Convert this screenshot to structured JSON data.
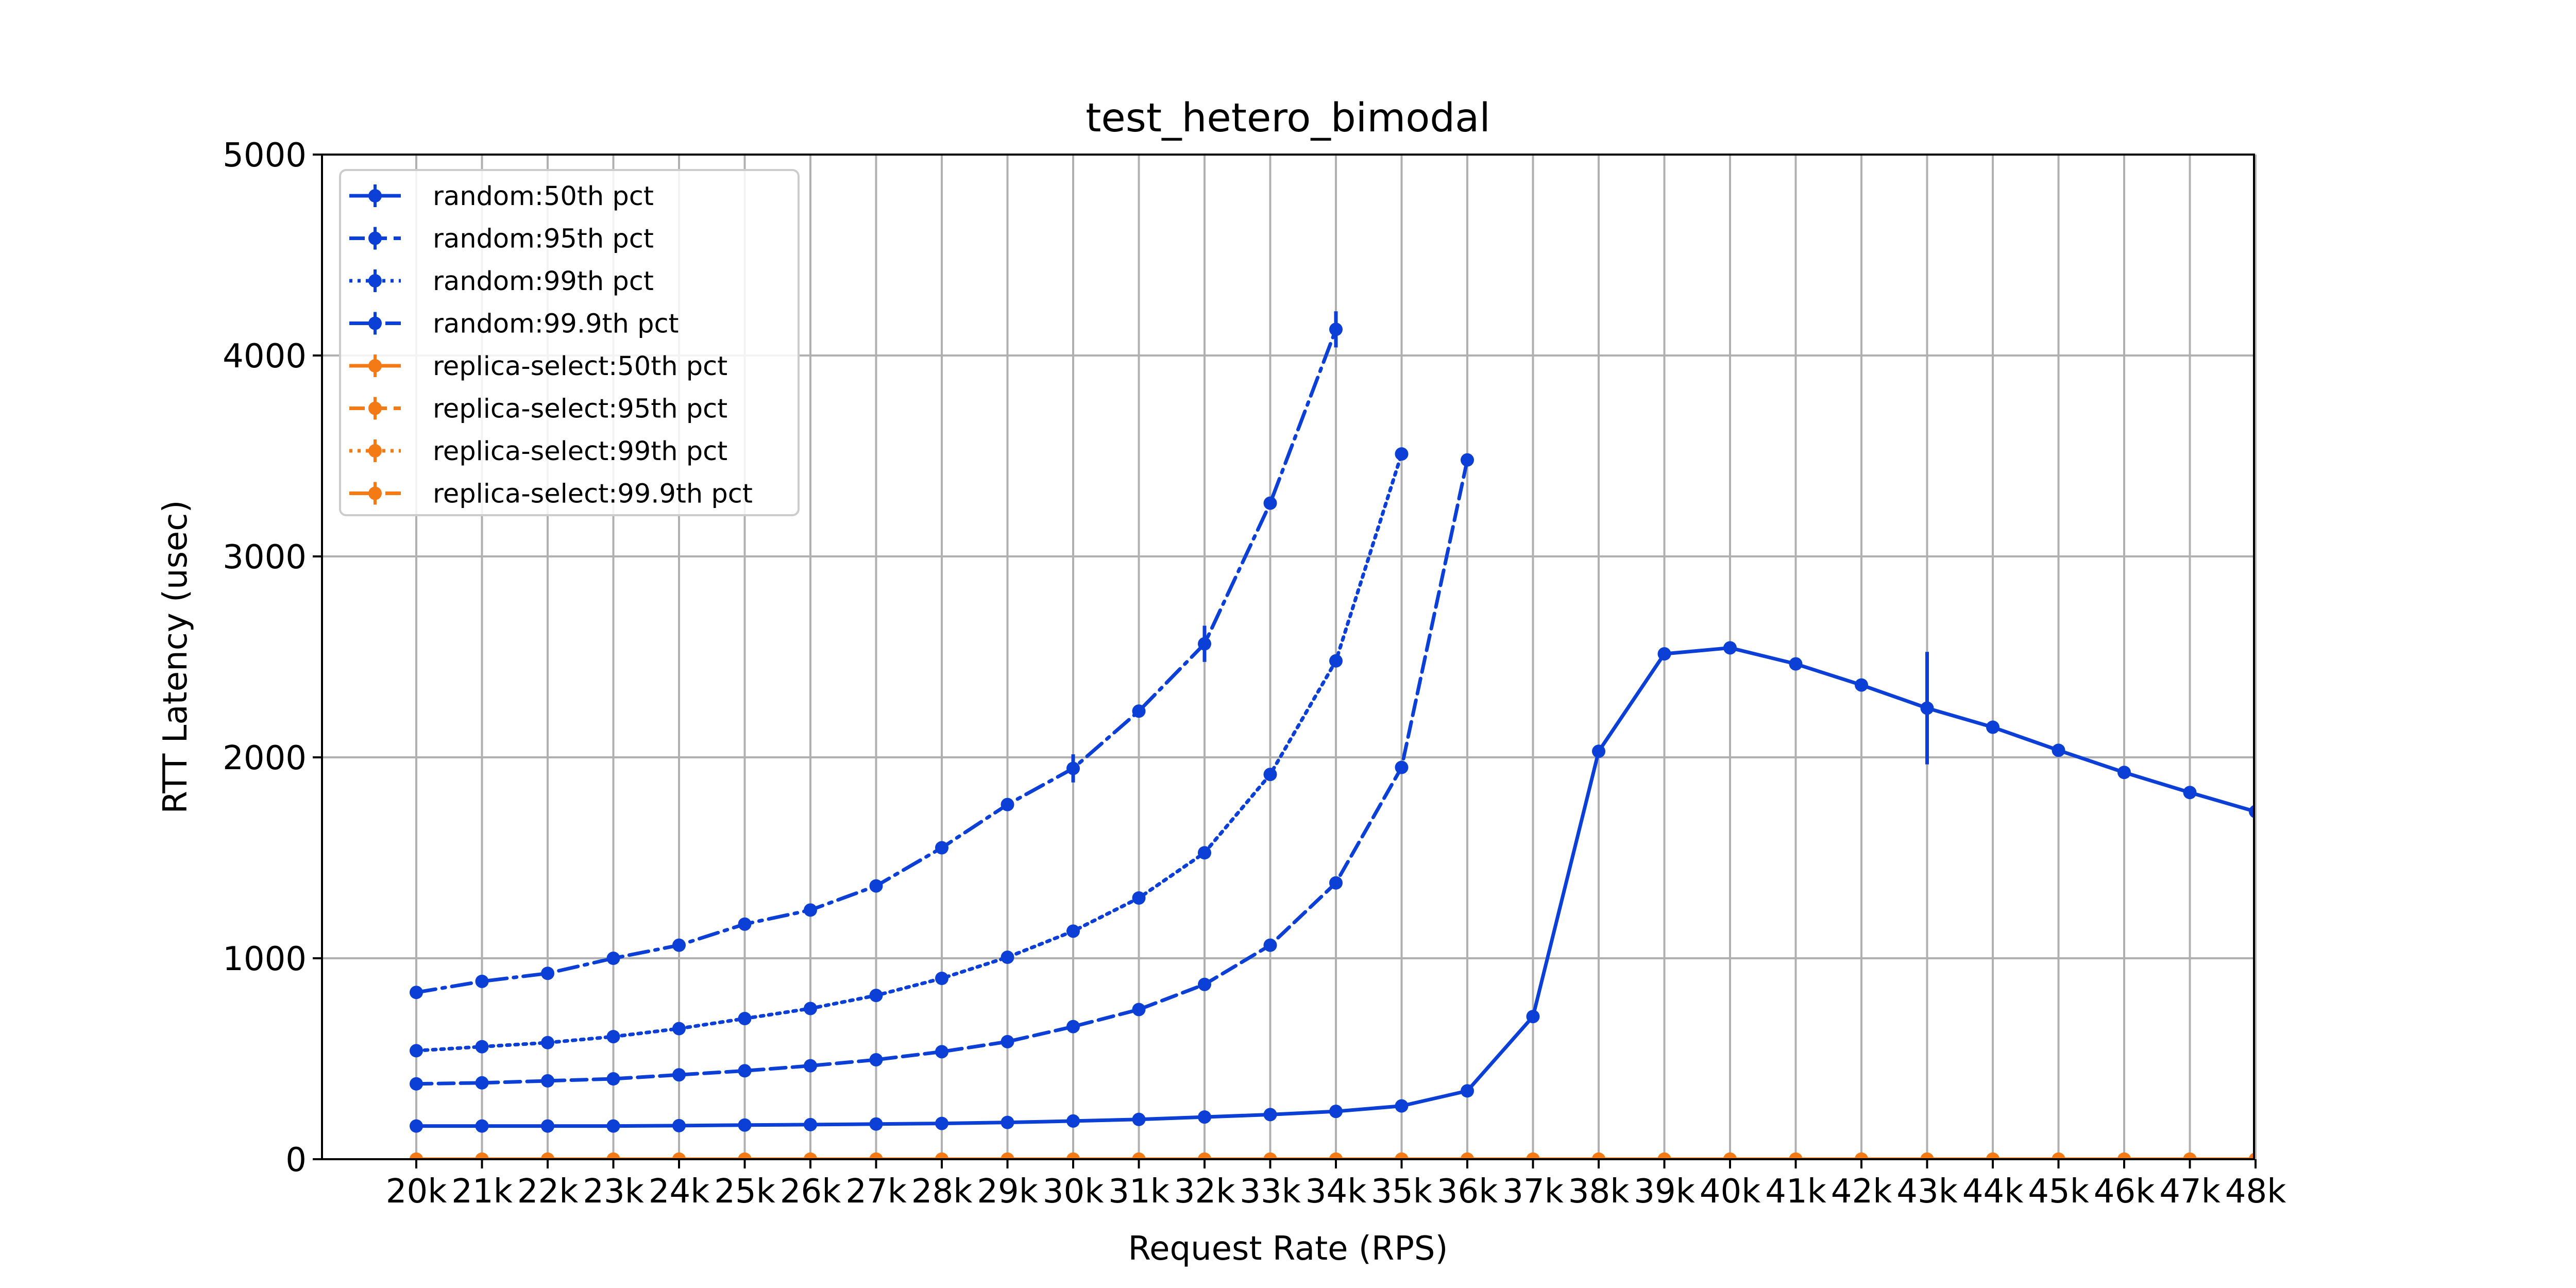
{
  "chart_data": {
    "type": "line",
    "title": "test_hetero_bimodal",
    "xlabel": "Request Rate (RPS)",
    "ylabel": "RTT Latency (usec)",
    "ylim": [
      0,
      5000
    ],
    "yticks": [
      0,
      1000,
      2000,
      3000,
      4000,
      5000
    ],
    "grid": true,
    "legend_position": "upper-left",
    "categories": [
      "20k",
      "21k",
      "22k",
      "23k",
      "24k",
      "25k",
      "26k",
      "27k",
      "28k",
      "29k",
      "30k",
      "31k",
      "32k",
      "33k",
      "34k",
      "35k",
      "36k",
      "37k",
      "38k",
      "39k",
      "40k",
      "41k",
      "42k",
      "43k",
      "44k",
      "45k",
      "46k",
      "47k",
      "48k"
    ],
    "series": [
      {
        "name": "random:50th pct",
        "color": "#0b3fd6",
        "dash": "solid",
        "values": [
          165,
          165,
          165,
          165,
          167,
          170,
          172,
          175,
          178,
          183,
          190,
          198,
          210,
          222,
          238,
          265,
          340,
          710,
          2030,
          2515,
          2545,
          2465,
          2360,
          2245,
          2150,
          2035,
          1925,
          1825,
          1730
        ],
        "errors": {
          "23": 280
        }
      },
      {
        "name": "random:95th pct",
        "color": "#0b3fd6",
        "dash": "dashed",
        "values": [
          375,
          380,
          390,
          400,
          420,
          440,
          465,
          495,
          535,
          585,
          660,
          745,
          870,
          1065,
          1375,
          1950,
          3480,
          null,
          null,
          null,
          null,
          null,
          null,
          null,
          null,
          null,
          null,
          null,
          null
        ]
      },
      {
        "name": "random:99th pct",
        "color": "#0b3fd6",
        "dash": "dotted",
        "values": [
          540,
          560,
          580,
          610,
          650,
          700,
          750,
          815,
          900,
          1005,
          1135,
          1300,
          1525,
          1915,
          2480,
          3510,
          null,
          null,
          null,
          null,
          null,
          null,
          null,
          null,
          null,
          null,
          null,
          null,
          null
        ],
        "errors": {
          "14": 30,
          "15": 30
        }
      },
      {
        "name": "random:99.9th pct",
        "color": "#0b3fd6",
        "dash": "dashdot",
        "values": [
          830,
          885,
          925,
          1000,
          1065,
          1170,
          1240,
          1360,
          1550,
          1765,
          1945,
          2230,
          2565,
          3265,
          4130,
          null,
          null,
          null,
          null,
          null,
          null,
          null,
          null,
          null,
          null,
          null,
          null,
          null,
          null
        ],
        "errors": {
          "10": 70,
          "12": 90,
          "14": 90
        }
      },
      {
        "name": "replica-select:50th pct",
        "color": "#f47a16",
        "dash": "solid",
        "values": [
          0,
          0,
          0,
          0,
          0,
          0,
          0,
          0,
          0,
          0,
          0,
          0,
          0,
          0,
          0,
          0,
          0,
          0,
          0,
          0,
          0,
          0,
          0,
          0,
          0,
          0,
          0,
          0,
          0
        ]
      },
      {
        "name": "replica-select:95th pct",
        "color": "#f47a16",
        "dash": "dashed",
        "values": [
          0,
          0,
          0,
          0,
          0,
          0,
          0,
          0,
          0,
          0,
          0,
          0,
          0,
          0,
          0,
          0,
          0,
          0,
          0,
          0,
          0,
          0,
          0,
          0,
          0,
          0,
          0,
          0,
          0
        ]
      },
      {
        "name": "replica-select:99th pct",
        "color": "#f47a16",
        "dash": "dotted",
        "values": [
          0,
          0,
          0,
          0,
          0,
          0,
          0,
          0,
          0,
          0,
          0,
          0,
          0,
          0,
          0,
          0,
          0,
          0,
          0,
          0,
          0,
          0,
          0,
          0,
          0,
          0,
          0,
          0,
          0
        ]
      },
      {
        "name": "replica-select:99.9th pct",
        "color": "#f47a16",
        "dash": "dashdot",
        "values": [
          0,
          0,
          0,
          0,
          0,
          0,
          0,
          0,
          0,
          0,
          0,
          0,
          0,
          0,
          0,
          0,
          0,
          0,
          0,
          0,
          0,
          0,
          0,
          0,
          0,
          0,
          0,
          0,
          0
        ]
      }
    ]
  }
}
